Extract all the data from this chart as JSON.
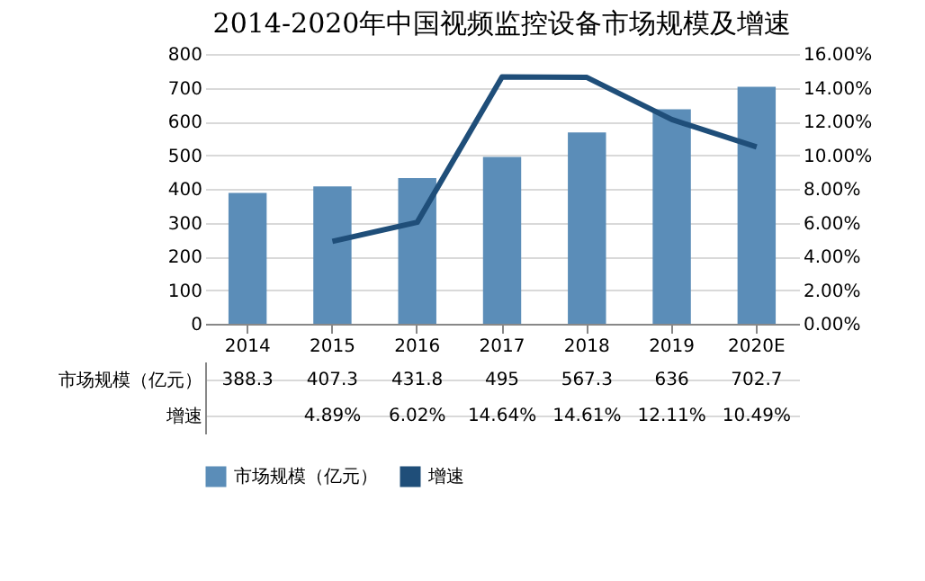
{
  "chart_data": {
    "type": "bar",
    "title": "2014-2020年中国视频监控设备市场规模及增速",
    "categories": [
      "2014",
      "2015",
      "2016",
      "2017",
      "2018",
      "2019",
      "2020E"
    ],
    "series": [
      {
        "name": "市场规模（亿元）",
        "color": "#5b8db8",
        "values": [
          388.3,
          407.3,
          431.8,
          495,
          567.3,
          636,
          702.7
        ],
        "value_labels": [
          "388.3",
          "407.3",
          "431.8",
          "495",
          "567.3",
          "636",
          "702.7"
        ]
      },
      {
        "name": "增速",
        "type": "line",
        "axis": "y2",
        "color": "#1f4e79",
        "values": [
          null,
          4.89,
          6.02,
          14.64,
          14.61,
          12.11,
          10.49
        ],
        "value_labels": [
          null,
          "4.89%",
          "6.02%",
          "14.64%",
          "14.61%",
          "12.11%",
          "10.49%"
        ]
      }
    ],
    "ylim": [
      0,
      800
    ],
    "yticks": [
      0,
      100,
      200,
      300,
      400,
      500,
      600,
      700,
      800
    ],
    "y2lim": [
      0,
      16
    ],
    "y2ticks": [
      {
        "value": 0,
        "label": "0.00%"
      },
      {
        "value": 2,
        "label": "2.00%"
      },
      {
        "value": 4,
        "label": "4.00%"
      },
      {
        "value": 6,
        "label": "6.00%"
      },
      {
        "value": 8,
        "label": "8.00%"
      },
      {
        "value": 10,
        "label": "10.00%"
      },
      {
        "value": 12,
        "label": "12.00%"
      },
      {
        "value": 14,
        "label": "14.00%"
      },
      {
        "value": 16,
        "label": "16.00%"
      }
    ],
    "grid": "y",
    "legend": "bottom",
    "data_labels": true,
    "marker": "none",
    "line_style": "solid"
  }
}
